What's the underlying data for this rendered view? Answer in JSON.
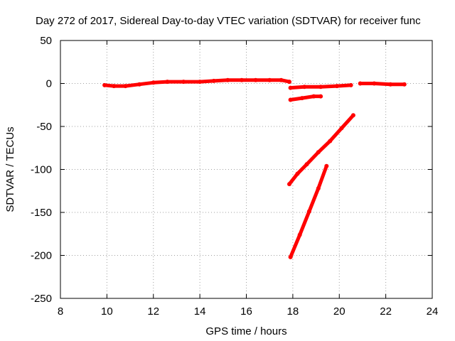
{
  "chart_data": {
    "type": "line",
    "title": "Day 272 of 2017, Sidereal Day-to-day VTEC variation (SDTVAR) for receiver func",
    "xlabel": "GPS time / hours",
    "ylabel": "SDTVAR / TECUs",
    "xlim": [
      8,
      24
    ],
    "ylim": [
      -250,
      50
    ],
    "xticks": [
      8,
      10,
      12,
      14,
      16,
      18,
      20,
      22,
      24
    ],
    "yticks": [
      -250,
      -200,
      -150,
      -100,
      -50,
      0,
      50
    ],
    "grid": true,
    "series_color": "#ff0000",
    "series": [
      {
        "name": "segment-1",
        "points": [
          [
            9.9,
            -2
          ],
          [
            10.3,
            -3
          ],
          [
            10.8,
            -3
          ],
          [
            11.4,
            -1
          ],
          [
            12.0,
            1
          ],
          [
            12.6,
            2
          ],
          [
            13.3,
            2
          ],
          [
            14.0,
            2
          ],
          [
            14.6,
            3
          ],
          [
            15.2,
            4
          ],
          [
            15.8,
            4
          ],
          [
            16.4,
            4
          ],
          [
            17.0,
            4
          ],
          [
            17.5,
            4
          ],
          [
            17.85,
            2
          ]
        ]
      },
      {
        "name": "segment-2",
        "points": [
          [
            17.9,
            -5
          ],
          [
            18.5,
            -4
          ],
          [
            19.2,
            -4
          ],
          [
            19.9,
            -3
          ],
          [
            20.5,
            -2
          ]
        ]
      },
      {
        "name": "segment-3",
        "points": [
          [
            17.9,
            -19
          ],
          [
            18.4,
            -17
          ],
          [
            18.9,
            -15
          ],
          [
            19.2,
            -15
          ]
        ]
      },
      {
        "name": "segment-4",
        "points": [
          [
            17.85,
            -117
          ],
          [
            18.2,
            -105
          ],
          [
            18.6,
            -94
          ],
          [
            19.1,
            -80
          ],
          [
            19.6,
            -67
          ],
          [
            20.1,
            -52
          ],
          [
            20.6,
            -37
          ]
        ]
      },
      {
        "name": "segment-5",
        "points": [
          [
            17.9,
            -202
          ],
          [
            18.3,
            -176
          ],
          [
            18.7,
            -149
          ],
          [
            19.1,
            -122
          ],
          [
            19.45,
            -96
          ]
        ]
      },
      {
        "name": "segment-6",
        "points": [
          [
            20.9,
            0
          ],
          [
            21.5,
            0
          ],
          [
            22.2,
            -1
          ],
          [
            22.8,
            -1
          ]
        ]
      }
    ]
  }
}
